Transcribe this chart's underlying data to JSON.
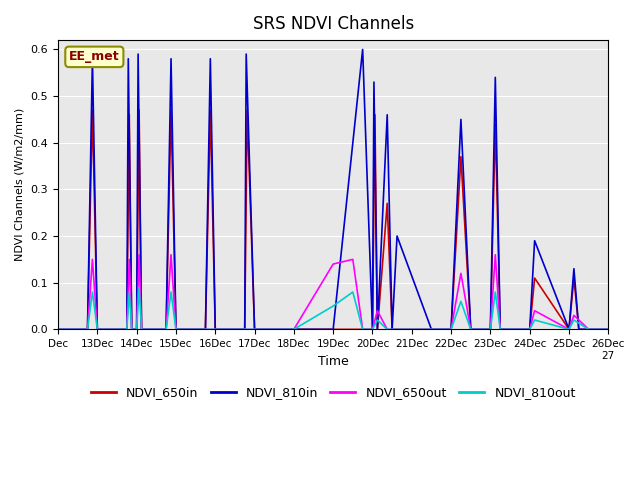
{
  "title": "SRS NDVI Channels",
  "ylabel": "NDVI Channels (W/m2/mm)",
  "xlabel": "Time",
  "annotation": "EE_met",
  "bg_color": "#e8e8e8",
  "legend": [
    "NDVI_650in",
    "NDVI_810in",
    "NDVI_650out",
    "NDVI_810out"
  ],
  "colors": [
    "#cc0000",
    "#0000cc",
    "#ff00ff",
    "#00cccc"
  ],
  "ylim": [
    0,
    0.62
  ],
  "xlim": [
    0,
    112
  ],
  "series": {
    "NDVI_650in": {
      "x": [
        0,
        6,
        7,
        8,
        14,
        14.5,
        15,
        16,
        16.5,
        17,
        22,
        23,
        24,
        30,
        31,
        32,
        38,
        38.5,
        40,
        64,
        64.5,
        65,
        67,
        68,
        76,
        80,
        82,
        84,
        88,
        89,
        90,
        96,
        97,
        104,
        105,
        106,
        108,
        110,
        112
      ],
      "y": [
        0,
        0,
        0.47,
        0,
        0,
        0.46,
        0,
        0,
        0.47,
        0,
        0,
        0.47,
        0,
        0,
        0.47,
        0,
        0,
        0.47,
        0,
        0,
        0.46,
        0,
        0.27,
        0,
        0,
        0,
        0.37,
        0,
        0,
        0.44,
        0,
        0,
        0.11,
        0,
        0.11,
        0,
        0,
        0,
        0
      ]
    },
    "NDVI_810in": {
      "x": [
        0,
        6,
        7,
        8,
        14,
        14.3,
        15,
        16,
        16.3,
        17,
        22,
        23,
        24,
        30,
        31,
        32,
        38,
        38.3,
        40,
        56,
        62,
        64,
        64.3,
        65,
        67,
        68,
        69,
        76,
        80,
        82,
        84,
        88,
        89,
        90,
        96,
        97,
        104,
        105,
        106,
        108,
        110,
        112
      ],
      "y": [
        0,
        0,
        0.58,
        0,
        0,
        0.58,
        0,
        0,
        0.59,
        0,
        0,
        0.58,
        0,
        0,
        0.58,
        0,
        0,
        0.59,
        0,
        0,
        0.6,
        0,
        0.53,
        0,
        0.46,
        0,
        0.2,
        0,
        0,
        0.45,
        0,
        0,
        0.54,
        0,
        0,
        0.19,
        0,
        0.13,
        0,
        0,
        0,
        0
      ]
    },
    "NDVI_650out": {
      "x": [
        0,
        6,
        7,
        8,
        14,
        14.5,
        15,
        16,
        16.5,
        17,
        22,
        23,
        24,
        48,
        56,
        60,
        62,
        64,
        65,
        67,
        68,
        76,
        80,
        82,
        84,
        88,
        89,
        90,
        96,
        97,
        104,
        105,
        108,
        112
      ],
      "y": [
        0,
        0,
        0.15,
        0,
        0,
        0.15,
        0,
        0,
        0.16,
        0,
        0,
        0.16,
        0,
        0,
        0.14,
        0.15,
        0,
        0,
        0.04,
        0,
        0,
        0,
        0,
        0.12,
        0,
        0,
        0.16,
        0,
        0,
        0.04,
        0,
        0.03,
        0,
        0
      ]
    },
    "NDVI_810out": {
      "x": [
        0,
        6,
        7,
        8,
        14,
        14.5,
        15,
        16,
        16.5,
        17,
        22,
        23,
        24,
        48,
        56,
        60,
        62,
        64,
        65,
        67,
        68,
        76,
        80,
        82,
        84,
        88,
        89,
        90,
        96,
        97,
        104,
        105,
        108,
        112
      ],
      "y": [
        0,
        0,
        0.08,
        0,
        0,
        0.08,
        0,
        0,
        0.09,
        0,
        0,
        0.08,
        0,
        0,
        0.05,
        0.08,
        0,
        0,
        0.02,
        0,
        0,
        0,
        0,
        0.06,
        0,
        0,
        0.08,
        0,
        0,
        0.02,
        0,
        0.02,
        0,
        0
      ]
    }
  }
}
